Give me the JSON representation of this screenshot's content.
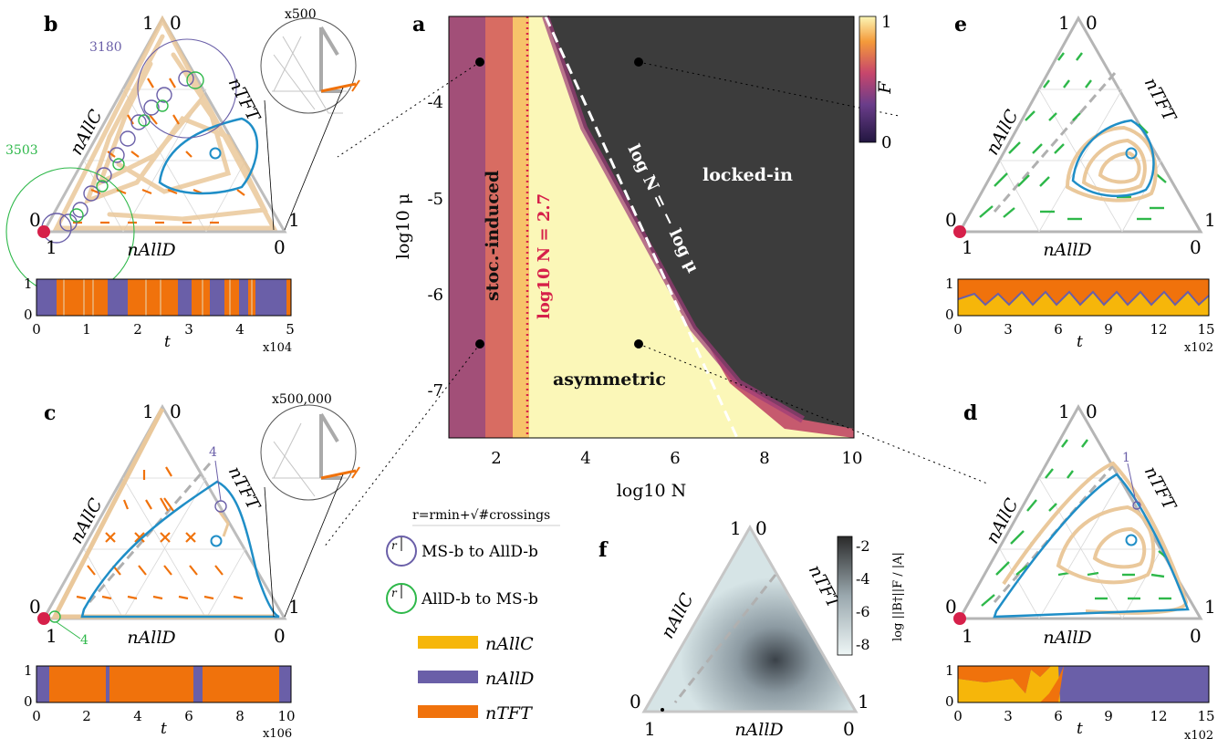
{
  "panel_letters": {
    "a": "a",
    "b": "b",
    "c": "c",
    "d": "d",
    "e": "e",
    "f": "f"
  },
  "colors": {
    "AllC": "#f6b60a",
    "AllD": "#6a5fa8",
    "TFT": "#f0720c",
    "limit_cycle": "#1f8ec7",
    "green_arrows": "#2eb84a",
    "red_marker": "#d6204a",
    "locked_in": "#3c3c3c"
  },
  "simplex_labels": {
    "top_1": "1",
    "top_0": "0",
    "left_0": "0",
    "left_1": "1",
    "right_1": "1",
    "right_0": "0",
    "allc": "nAllC",
    "tft": "nTFT",
    "alld": "nAllD"
  },
  "panel_a": {
    "xlabel": "log10 N",
    "ylabel": "log10 μ",
    "x_ticks": [
      "2",
      "4",
      "6",
      "8",
      "10"
    ],
    "y_ticks": [
      "-4",
      "-5",
      "-6",
      "-7"
    ],
    "region_labels": {
      "stoc": "stoc.-induced",
      "locked": "locked-in",
      "asym": "asymmetric"
    },
    "line_labels": {
      "dotted": "log10 N = 2.7",
      "dashed": "log N = − log μ"
    },
    "colorbar": {
      "label": "F",
      "top": "1",
      "bottom": "0"
    }
  },
  "panel_b": {
    "zoom": "x500",
    "annotations": {
      "purple": "3180",
      "green": "3503"
    },
    "ts_x_ticks": [
      "0",
      "1",
      "2",
      "3",
      "4",
      "5"
    ],
    "ts_y_ticks": [
      "0",
      "1"
    ],
    "ts_xlabel": "t",
    "ts_scale": "x104"
  },
  "panel_c": {
    "zoom": "x500,000",
    "annotations": {
      "purple": "4",
      "green": "4"
    },
    "ts_x_ticks": [
      "0",
      "2",
      "4",
      "6",
      "8",
      "10"
    ],
    "ts_y_ticks": [
      "0",
      "1"
    ],
    "ts_xlabel": "t",
    "ts_scale": "x106"
  },
  "panel_d": {
    "annotations": {
      "purple": "1"
    },
    "ts_x_ticks": [
      "0",
      "3",
      "6",
      "9",
      "12",
      "15"
    ],
    "ts_y_ticks": [
      "0",
      "1"
    ],
    "ts_xlabel": "t",
    "ts_scale": "x102"
  },
  "panel_e": {
    "ts_x_ticks": [
      "0",
      "3",
      "6",
      "9",
      "12",
      "15"
    ],
    "ts_y_ticks": [
      "0",
      "1"
    ],
    "ts_xlabel": "t",
    "ts_scale": "x102"
  },
  "panel_f": {
    "colorbar_ticks": [
      "-2",
      "-4",
      "-6",
      "-8"
    ],
    "colorbar_label": "log ||B†||F / |A|"
  },
  "legend": {
    "formula": "r=rmin+√#crossings",
    "ms_to_alld": "MS-b to AllD-b",
    "alld_to_ms": "AllD-b to MS-b",
    "r_symbol": "r",
    "allc": "nAllC",
    "alld": "nAllD",
    "tft": "nTFT"
  }
}
